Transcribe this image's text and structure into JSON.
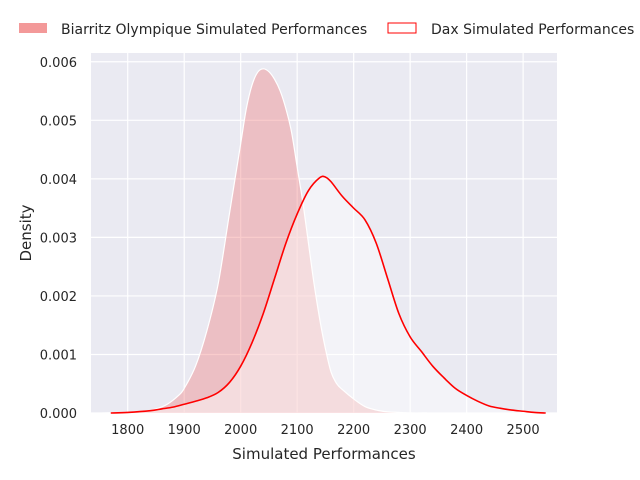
{
  "chart_data": {
    "type": "area",
    "xlabel": "Simulated Performances",
    "ylabel": "Density",
    "xlim": [
      1735,
      2560
    ],
    "ylim": [
      0,
      0.00615
    ],
    "x_ticks": [
      1800,
      1900,
      2000,
      2100,
      2200,
      2300,
      2400,
      2500
    ],
    "y_ticks": [
      0.0,
      0.001,
      0.002,
      0.003,
      0.004,
      0.005,
      0.006
    ],
    "x_tick_labels": [
      "1800",
      "1900",
      "2000",
      "2100",
      "2200",
      "2300",
      "2400",
      "2500"
    ],
    "y_tick_labels": [
      "0.000",
      "0.001",
      "0.002",
      "0.003",
      "0.004",
      "0.005",
      "0.006"
    ],
    "grid": true,
    "legend_position": "top",
    "background_color": "#eaeaf2",
    "grid_color": "#ffffff",
    "series": [
      {
        "name": "Biarritz Olympique Simulated Performances",
        "style": "filled",
        "color": "#f08080",
        "x": [
          1755,
          1800,
          1830,
          1850,
          1870,
          1890,
          1900,
          1920,
          1940,
          1960,
          1980,
          2000,
          2010,
          2020,
          2030,
          2040,
          2050,
          2060,
          2070,
          2080,
          2090,
          2100,
          2110,
          2120,
          2130,
          2140,
          2150,
          2160,
          2170,
          2180,
          2200,
          2220,
          2240,
          2260,
          2280,
          2300,
          2330
        ],
        "y": [
          0.0,
          1e-05,
          3e-05,
          7e-05,
          0.00015,
          0.0003,
          0.00042,
          0.0008,
          0.0014,
          0.0022,
          0.0034,
          0.0046,
          0.0052,
          0.0056,
          0.00582,
          0.00588,
          0.00583,
          0.0057,
          0.0055,
          0.0052,
          0.0048,
          0.0042,
          0.0036,
          0.0029,
          0.0022,
          0.0016,
          0.0011,
          0.0007,
          0.0005,
          0.0004,
          0.00024,
          0.00011,
          5e-05,
          2e-05,
          1e-05,
          0.0,
          0.0
        ]
      },
      {
        "name": "Dax Simulated Performances",
        "style": "line",
        "color": "#ff0000",
        "x": [
          1770,
          1800,
          1840,
          1860,
          1880,
          1900,
          1920,
          1940,
          1960,
          1980,
          2000,
          2020,
          2040,
          2060,
          2080,
          2100,
          2120,
          2140,
          2150,
          2160,
          2180,
          2200,
          2220,
          2240,
          2260,
          2280,
          2300,
          2320,
          2340,
          2360,
          2380,
          2400,
          2420,
          2440,
          2460,
          2480,
          2500,
          2520,
          2540
        ],
        "y": [
          0.0,
          1e-05,
          4e-05,
          7e-05,
          0.0001,
          0.00015,
          0.0002,
          0.00026,
          0.00035,
          0.00052,
          0.0008,
          0.0012,
          0.0017,
          0.0023,
          0.0029,
          0.0034,
          0.0038,
          0.00402,
          0.00403,
          0.00395,
          0.0037,
          0.0035,
          0.0033,
          0.0029,
          0.0023,
          0.0017,
          0.0013,
          0.00105,
          0.0008,
          0.0006,
          0.00042,
          0.0003,
          0.0002,
          0.00012,
          8e-05,
          5e-05,
          3e-05,
          1e-05,
          0.0
        ]
      }
    ]
  }
}
